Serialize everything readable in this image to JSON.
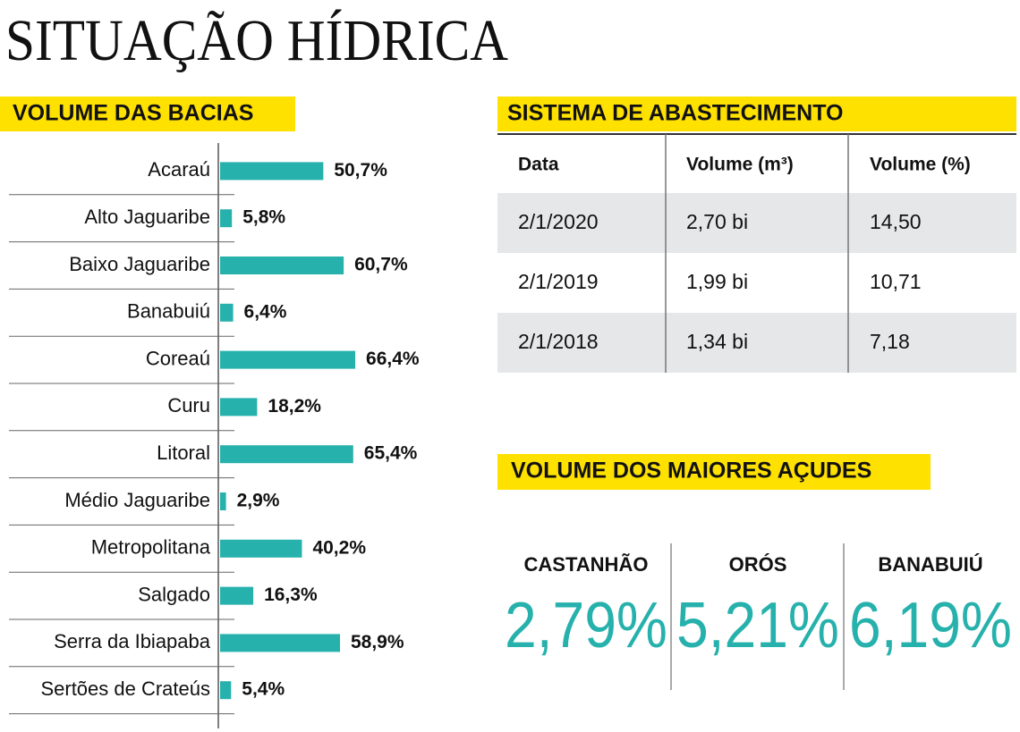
{
  "title": "SITUAÇÃO HÍDRICA",
  "chart_data": {
    "type": "bar",
    "orientation": "horizontal",
    "title": "VOLUME DAS BACIAS",
    "color": "#26b1ac",
    "categories": [
      "Acaraú",
      "Alto Jaguaribe",
      "Baixo Jaguaribe",
      "Banabuiú",
      "Coreaú",
      "Curu",
      "Litoral",
      "Médio Jaguaribe",
      "Metropolitana",
      "Salgado",
      "Serra da Ibiapaba",
      "Sertões de Crateús"
    ],
    "values": [
      50.7,
      5.8,
      60.7,
      6.4,
      66.4,
      18.2,
      65.4,
      2.9,
      40.2,
      16.3,
      58.9,
      5.4
    ],
    "value_labels": [
      "50,7%",
      "5,8%",
      "60,7%",
      "6,4%",
      "66,4%",
      "18,2%",
      "65,4%",
      "2,9%",
      "40,2%",
      "16,3%",
      "58,9%",
      "5,4%"
    ]
  },
  "table": {
    "title": "SISTEMA DE ABASTECIMENTO",
    "header": [
      "Data",
      "Volume (m³)",
      "Volume  (%)"
    ],
    "rows": [
      [
        "2/1/2020",
        "2,70 bi",
        "14,50"
      ],
      [
        "2/1/2019",
        "1,99 bi",
        "10,71"
      ],
      [
        "2/1/2018",
        "1,34 bi",
        "7,18"
      ]
    ]
  },
  "reservoirs": {
    "title": "VOLUME DOS MAIORES AÇUDES",
    "items": [
      {
        "name": "CASTANHÃO",
        "value": "2,79%"
      },
      {
        "name": "ORÓS",
        "value": "5,21%"
      },
      {
        "name": "BANABUIÚ",
        "value": "6,19%"
      }
    ]
  }
}
